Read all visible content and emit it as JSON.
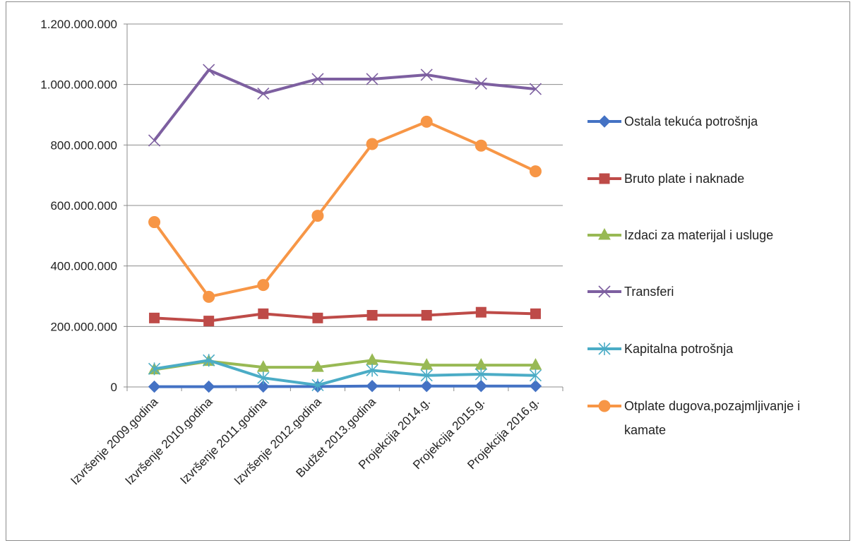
{
  "chart_data": {
    "type": "line",
    "categories": [
      "Izvršenje 2009.godina",
      "Izvršenje 2010.godina",
      "Izvršenje 2011.godina",
      "Izvršenje 2012.godina",
      "Budžet 2013.godina",
      "Projekcija 2014.g.",
      "Projekcija 2015.g.",
      "Projekcija 2016.g."
    ],
    "y_ticks": [
      "0",
      "200.000.000",
      "400.000.000",
      "600.000.000",
      "800.000.000",
      "1.000.000.000",
      "1.200.000.000"
    ],
    "ylim": [
      0,
      1200000000
    ],
    "grid": true,
    "legend_position": "right",
    "series": [
      {
        "name": "Ostala tekuća potrošnja",
        "color": "#4472c4",
        "marker": "diamond",
        "values": [
          1000000,
          1000000,
          1500000,
          1500000,
          3000000,
          3000000,
          3000000,
          3000000
        ]
      },
      {
        "name": "Bruto plate i naknade",
        "color": "#be4b48",
        "marker": "square",
        "values": [
          228000000,
          218000000,
          242000000,
          228000000,
          237000000,
          237000000,
          247000000,
          242000000
        ]
      },
      {
        "name": "Izdaci za materijal i usluge",
        "color": "#98b954",
        "marker": "triangle",
        "values": [
          57000000,
          85000000,
          65000000,
          65000000,
          88000000,
          72000000,
          72000000,
          72000000
        ]
      },
      {
        "name": "Transferi",
        "color": "#7d5fa0",
        "marker": "x",
        "values": [
          815000000,
          1048000000,
          970000000,
          1018000000,
          1018000000,
          1032000000,
          1003000000,
          985000000
        ]
      },
      {
        "name": "Kapitalna potrošnja",
        "color": "#4bacc6",
        "marker": "star",
        "values": [
          60000000,
          88000000,
          30000000,
          6000000,
          55000000,
          38000000,
          42000000,
          38000000
        ]
      },
      {
        "name": "Otplate dugova,pozajmljivanje i kamate",
        "color": "#f79646",
        "marker": "circle",
        "values": [
          545000000,
          298000000,
          337000000,
          566000000,
          803000000,
          877000000,
          798000000,
          713000000
        ]
      }
    ]
  }
}
